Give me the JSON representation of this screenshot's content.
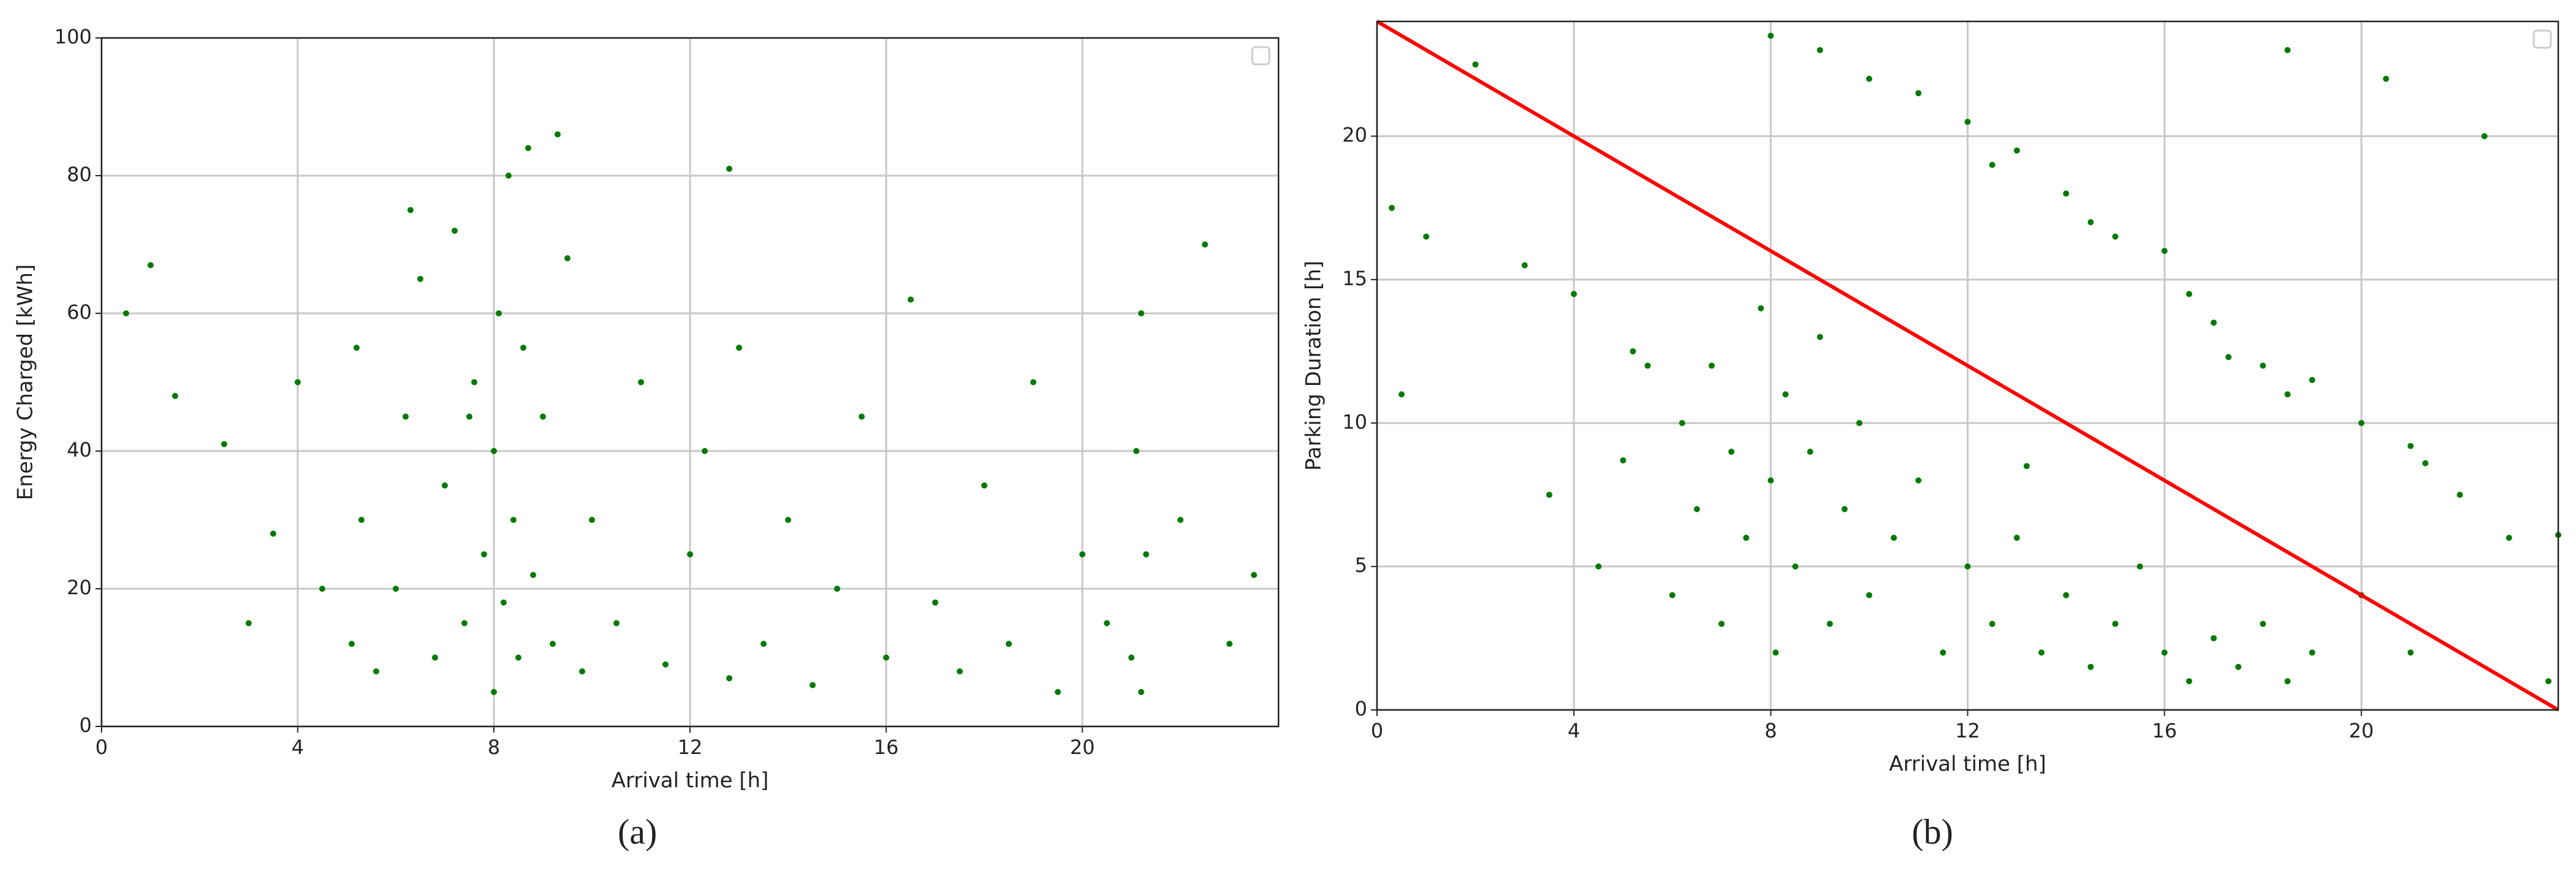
{
  "chart_data": [
    {
      "type": "scatter",
      "caption": "(a)",
      "xlabel": "Arrival time [h]",
      "ylabel": "Energy Charged [kWh]",
      "color": "#007a00",
      "grid": true,
      "xlim": [
        0,
        24
      ],
      "ylim": [
        0,
        100
      ],
      "xticks": [
        0,
        4,
        8,
        12,
        16,
        20
      ],
      "yticks": [
        0,
        20,
        40,
        60,
        80,
        100
      ],
      "x": [
        5.1,
        5.3,
        5.2,
        5.6,
        6.0,
        6.2,
        6.5,
        6.8,
        7.0,
        7.2,
        7.4,
        7.6,
        7.8,
        8.0,
        8.0,
        8.1,
        8.2,
        8.3,
        8.4,
        8.5,
        8.6,
        8.8,
        9.0,
        9.2,
        9.5,
        9.8,
        10.0,
        10.5,
        11.0,
        11.5,
        12.0,
        12.3,
        12.8,
        13.0,
        13.5,
        14.0,
        14.5,
        15.0,
        15.5,
        16.0,
        16.5,
        17.0,
        17.5,
        18.0,
        18.5,
        19.0,
        19.5,
        20.0,
        20.5,
        21.0,
        21.1,
        21.2,
        21.3,
        21.2,
        22.0,
        22.5,
        23.0,
        23.5,
        0.5,
        1.0,
        1.5,
        2.5,
        3.0,
        3.5,
        4.0,
        4.5,
        6.3,
        7.5,
        8.7,
        9.3,
        12.8
      ],
      "y": [
        12,
        30,
        55,
        8,
        20,
        45,
        65,
        10,
        35,
        72,
        15,
        50,
        25,
        5,
        40,
        60,
        18,
        80,
        30,
        10,
        55,
        22,
        45,
        12,
        68,
        8,
        30,
        15,
        50,
        9,
        25,
        40,
        7,
        55,
        12,
        30,
        6,
        20,
        45,
        10,
        62,
        18,
        8,
        35,
        12,
        50,
        5,
        25,
        15,
        10,
        40,
        60,
        25,
        5,
        30,
        70,
        12,
        22,
        60,
        67,
        48,
        41,
        15,
        28,
        50,
        20,
        75,
        45,
        84,
        86,
        81
      ]
    },
    {
      "type": "scatter",
      "caption": "(b)",
      "xlabel": "Arrival time [h]",
      "ylabel": "Parking Duration [h]",
      "color": "#007a00",
      "grid": true,
      "xlim": [
        0,
        24
      ],
      "ylim": [
        0,
        24
      ],
      "xticks": [
        0,
        4,
        8,
        12,
        16,
        20
      ],
      "yticks": [
        0,
        5,
        10,
        15,
        20
      ],
      "x": [
        5.0,
        5.2,
        5.5,
        6.0,
        6.2,
        6.5,
        6.8,
        7.0,
        7.2,
        7.5,
        7.8,
        8.0,
        8.1,
        8.3,
        8.5,
        8.8,
        9.0,
        9.2,
        9.5,
        9.8,
        10.0,
        10.5,
        11.0,
        11.5,
        12.0,
        12.5,
        13.0,
        13.2,
        13.5,
        14.0,
        14.5,
        15.0,
        15.5,
        16.0,
        16.5,
        17.0,
        17.5,
        18.0,
        18.5,
        19.0,
        20.0,
        21.0,
        8.0,
        9.0,
        10.0,
        11.0,
        12.0,
        12.5,
        13.0,
        14.0,
        14.5,
        15.0,
        16.0,
        16.5,
        17.0,
        17.3,
        18.0,
        18.5,
        19.0,
        20.0,
        21.3,
        21.0,
        22.0,
        23.0,
        22.5,
        20.5,
        18.5,
        0.3,
        1.0,
        2.0,
        3.0,
        4.0,
        3.5,
        0.5,
        4.5,
        24.0,
        23.8
      ],
      "y": [
        8.7,
        12.5,
        12.0,
        4,
        10,
        7,
        12,
        3,
        9,
        6,
        14,
        8,
        2,
        11,
        5,
        9,
        13,
        3,
        7,
        10,
        4,
        6,
        8,
        2,
        5,
        3,
        6,
        8.5,
        2,
        4,
        1.5,
        3,
        5,
        2,
        1,
        2.5,
        1.5,
        3,
        1,
        2,
        4,
        2,
        23.5,
        23,
        22,
        21.5,
        20.5,
        19,
        19.5,
        18,
        17,
        16.5,
        16,
        14.5,
        13.5,
        12.3,
        12,
        11,
        11.5,
        10,
        8.6,
        9.2,
        7.5,
        6,
        20,
        22,
        23,
        17.5,
        16.5,
        22.5,
        15.5,
        14.5,
        7.5,
        11,
        5,
        6.1,
        1
      ],
      "line": {
        "x": [
          0,
          24
        ],
        "y": [
          24,
          0
        ],
        "color": "#ff0000"
      }
    }
  ]
}
